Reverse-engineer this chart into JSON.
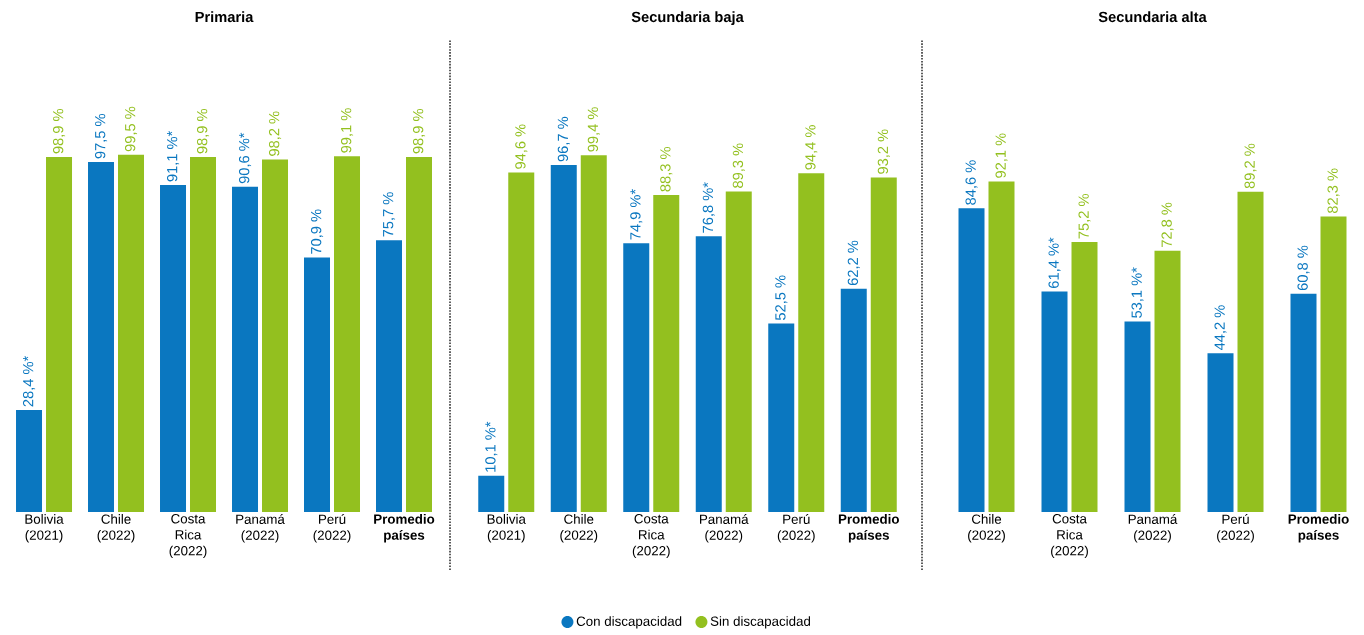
{
  "chart_data": [
    {
      "type": "bar",
      "title": "Primaria",
      "categories": [
        "Bolivia (2021)",
        "Chile (2022)",
        "Costa Rica (2022)",
        "Panamá (2022)",
        "Perú (2022)",
        "**Promedio países**"
      ],
      "tick_labels": "x",
      "series": [
        {
          "color": "#0a77c0",
          "values": [
            28.4,
            97.5,
            91.1,
            90.6,
            70.9,
            75.7
          ],
          "value_labels": [
            "28,4 %*",
            "97,5 %",
            "91,1 %*",
            "90,6 %*",
            "70,9 %",
            "75,7 %"
          ]
        },
        {
          "color": "#93c01f",
          "values": [
            98.9,
            99.5,
            98.9,
            98.2,
            99.1,
            98.9
          ],
          "value_labels": [
            "98,9 %",
            "99,5 %",
            "98,9 %",
            "98,2 %",
            "99,1 %",
            "98,9 %"
          ]
        }
      ]
    },
    {
      "type": "bar",
      "title": "Secundaria baja",
      "categories": [
        "Bolivia (2021)",
        "Chile (2022)",
        "Costa Rica (2022)",
        "Panamá (2022)",
        "Perú (2022)",
        "**Promedio países**"
      ],
      "tick_labels": "x",
      "legend": "bottom",
      "series": [
        {
          "name": "Con discapacidad",
          "color": "#0a77c0",
          "values": [
            10.1,
            96.7,
            74.9,
            76.8,
            52.5,
            62.2
          ],
          "value_labels": [
            "10,1 %*",
            "96,7 %",
            "74,9 %*",
            "76,8 %*",
            "52,5 %",
            "62,2 %"
          ]
        },
        {
          "name": "Sin discapacidad",
          "color": "#93c01f",
          "values": [
            94.6,
            99.4,
            88.3,
            89.3,
            94.4,
            93.2
          ],
          "value_labels": [
            "94,6 %",
            "99,4 %",
            "88,3 %",
            "89,3 %",
            "94,4 %",
            "93,2 %"
          ]
        }
      ]
    },
    {
      "type": "bar",
      "title": "Secundaria alta",
      "categories": [
        "Chile (2022)",
        "Costa Rica (2022)",
        "Panamá (2022)",
        "Perú (2022)",
        "**Promedio países**"
      ],
      "tick_labels": "x",
      "series": [
        {
          "color": "#0a77c0",
          "values": [
            84.6,
            61.4,
            53.1,
            44.2,
            60.8
          ],
          "value_labels": [
            "84,6 %",
            "61,4 %*",
            "53,1 %*",
            "44,2 %",
            "60,8 %"
          ]
        },
        {
          "color": "#93c01f",
          "values": [
            92.1,
            75.2,
            72.8,
            89.2,
            82.3
          ],
          "value_labels": [
            "92,1 %",
            "75,2 %",
            "72,8 %",
            "89,2 %",
            "82,3 %"
          ]
        }
      ]
    }
  ]
}
